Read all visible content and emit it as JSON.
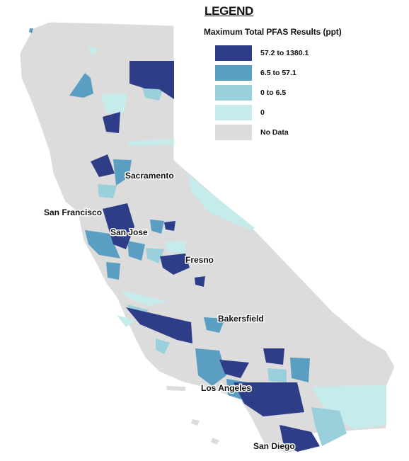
{
  "legend": {
    "title": "LEGEND",
    "subtitle": "Maximum Total PFAS Results (ppt)",
    "items": [
      {
        "label": "57.2  to  1380.1",
        "color": "#2e3d87"
      },
      {
        "label": "6.5  to  57.1",
        "color": "#5a9ec2"
      },
      {
        "label": "0 to 6.5",
        "color": "#9acfdc"
      },
      {
        "label": "0",
        "color": "#c6ebeb"
      },
      {
        "label": "No Data",
        "color": "#dcdcdc"
      }
    ]
  },
  "cities": [
    {
      "name": "Sacramento"
    },
    {
      "name": "San Francisco"
    },
    {
      "name": "San Jose"
    },
    {
      "name": "Fresno"
    },
    {
      "name": "Bakersfield"
    },
    {
      "name": "Los Angeles"
    },
    {
      "name": "San Diego"
    }
  ]
}
